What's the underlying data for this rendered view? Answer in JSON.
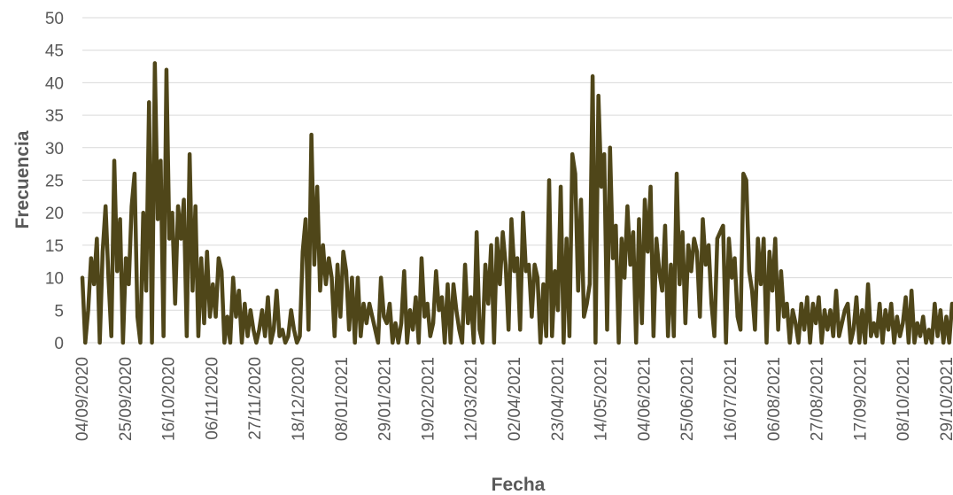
{
  "chart_data": {
    "type": "line",
    "xlabel": "Fecha",
    "ylabel": "Frecuencia",
    "ylim": [
      0,
      50
    ],
    "yticks": [
      "0",
      "5",
      "10",
      "15",
      "20",
      "25",
      "30",
      "35",
      "40",
      "45",
      "50"
    ],
    "x_tick_labels": [
      "04/09/2020",
      "25/09/2020",
      "16/10/2020",
      "06/11/2020",
      "27/11/2020",
      "18/12/2020",
      "08/01/2021",
      "29/01/2021",
      "19/02/2021",
      "12/03/2021",
      "02/04/2021",
      "23/04/2021",
      "14/05/2021",
      "04/06/2021",
      "25/06/2021",
      "16/07/2021",
      "06/08/2021",
      "27/08/2021",
      "17/09/2021",
      "08/10/2021",
      "29/10/2021"
    ],
    "x_start": "04/09/2020",
    "x_end": "29/10/2021",
    "grid": true,
    "line_color": "#4f4619",
    "series": [
      {
        "values": [
          10,
          0,
          5,
          13,
          9,
          16,
          0,
          14,
          21,
          10,
          1,
          28,
          11,
          19,
          0,
          13,
          9,
          21,
          26,
          4,
          0,
          20,
          8,
          37,
          0,
          43,
          19,
          28,
          1,
          42,
          16,
          20,
          6,
          21,
          16,
          22,
          1,
          29,
          8,
          21,
          1,
          13,
          3,
          14,
          4,
          9,
          4,
          13,
          11,
          0,
          4,
          0,
          10,
          4,
          8,
          0,
          6,
          1,
          5,
          2,
          0,
          2,
          5,
          1,
          7,
          0,
          2,
          8,
          1,
          2,
          0,
          1,
          5,
          2,
          0,
          1,
          14,
          19,
          2,
          32,
          12,
          24,
          8,
          15,
          9,
          13,
          10,
          1,
          12,
          4,
          14,
          11,
          2,
          10,
          0,
          10,
          1,
          6,
          3,
          6,
          4,
          2,
          0,
          10,
          4,
          3,
          6,
          0,
          3,
          0,
          3,
          11,
          0,
          5,
          2,
          7,
          0,
          13,
          4,
          6,
          1,
          3,
          11,
          5,
          7,
          0,
          9,
          0,
          9,
          5,
          2,
          0,
          12,
          3,
          7,
          0,
          17,
          2,
          0,
          12,
          6,
          15,
          0,
          16,
          9,
          17,
          12,
          2,
          19,
          11,
          13,
          2,
          20,
          11,
          12,
          4,
          12,
          10,
          0,
          9,
          1,
          25,
          1,
          11,
          5,
          24,
          0,
          16,
          1,
          29,
          26,
          8,
          22,
          4,
          6,
          9,
          41,
          0,
          38,
          24,
          29,
          2,
          30,
          13,
          18,
          0,
          16,
          10,
          21,
          12,
          17,
          0,
          19,
          3,
          22,
          14,
          24,
          1,
          16,
          11,
          8,
          18,
          1,
          12,
          1,
          26,
          9,
          17,
          3,
          15,
          11,
          16,
          14,
          4,
          19,
          12,
          15,
          6,
          1,
          16,
          17,
          18,
          0,
          16,
          10,
          13,
          4,
          2,
          26,
          25,
          11,
          8,
          2,
          16,
          9,
          16,
          0,
          14,
          8,
          16,
          2,
          11,
          4,
          6,
          0,
          5,
          3,
          0,
          6,
          2,
          7,
          0,
          6,
          3,
          7,
          0,
          5,
          2,
          5,
          1,
          8,
          1,
          3,
          5,
          6,
          0,
          2,
          7,
          0,
          5,
          0,
          9,
          1,
          3,
          1,
          6,
          0,
          5,
          2,
          6,
          0,
          4,
          1,
          3,
          7,
          0,
          8,
          0,
          3,
          1,
          4,
          0,
          2,
          0,
          6,
          1,
          5,
          0,
          4,
          0,
          6
        ]
      }
    ]
  }
}
